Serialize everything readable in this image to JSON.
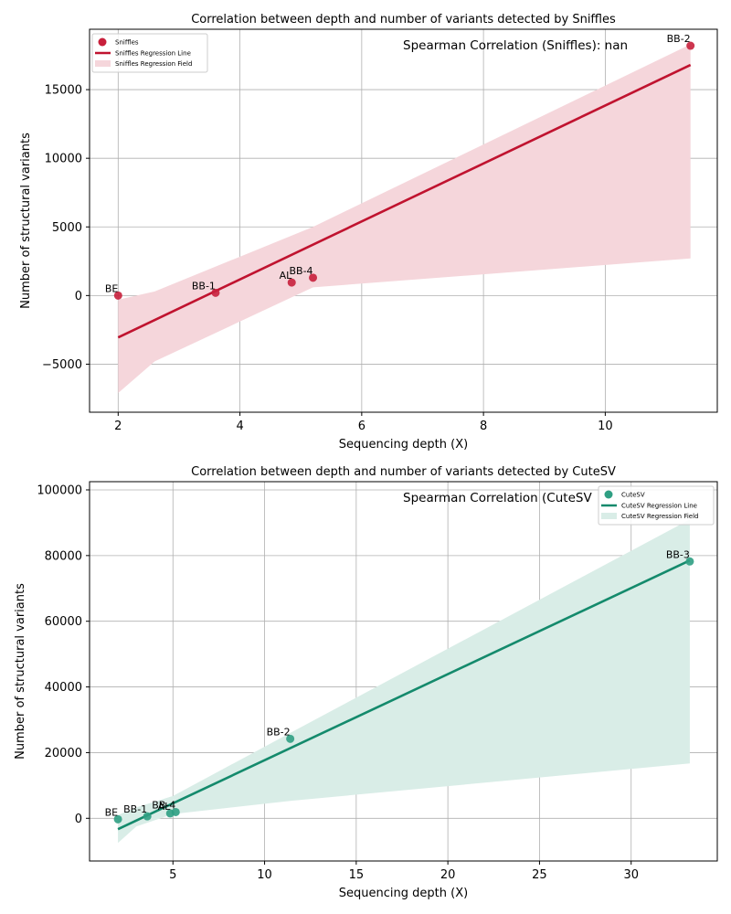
{
  "chart_data": [
    {
      "type": "scatter",
      "title": "Correlation between depth and number of variants detected by Sniffles",
      "xlabel": "Sequencing depth (X)",
      "ylabel": "Number of structural variants",
      "xlim": [
        1.53,
        11.84
      ],
      "ylim": [
        -8500,
        19400
      ],
      "xticks": [
        2,
        4,
        6,
        8,
        10
      ],
      "yticks": [
        -5000,
        0,
        5000,
        10000,
        15000
      ],
      "ytick_labels": [
        "−5000",
        "0",
        "5000",
        "10000",
        "15000"
      ],
      "grid": true,
      "legend_position": "top-left",
      "annotation": "Spearman Correlation (Sniffles): nan",
      "colors": {
        "points": "#c8203c",
        "line": "#c0132f",
        "band": "#f5d6db"
      },
      "series": [
        {
          "name": "Sniffles",
          "points": [
            {
              "label": "BE",
              "x": 2.0,
              "y": 0
            },
            {
              "label": "BB-1",
              "x": 3.6,
              "y": 200
            },
            {
              "label": "AL",
              "x": 4.85,
              "y": 950
            },
            {
              "label": "BB-4",
              "x": 5.2,
              "y": 1300
            },
            {
              "label": "BB-2",
              "x": 11.4,
              "y": 18200
            }
          ]
        }
      ],
      "regression_line": {
        "name": "Sniffles Regression Line",
        "x": [
          2.0,
          11.4
        ],
        "y": [
          -3050,
          16800
        ]
      },
      "regression_band": {
        "name": "Sniffles Regression Field",
        "x": [
          2.0,
          2.6,
          5.2,
          11.4
        ],
        "upper": [
          -300,
          300,
          5000,
          18300
        ],
        "lower": [
          -7100,
          -4800,
          600,
          2700
        ]
      }
    },
    {
      "type": "scatter",
      "title": "Correlation between depth and number of variants detected by CuteSV",
      "xlabel": "Sequencing depth (X)",
      "ylabel": "Number of structural variants",
      "xlim": [
        0.45,
        34.7
      ],
      "ylim": [
        -13000,
        102500
      ],
      "xticks": [
        5,
        10,
        15,
        20,
        25,
        30
      ],
      "yticks": [
        0,
        20000,
        40000,
        60000,
        80000,
        100000
      ],
      "ytick_labels": [
        "0",
        "20000",
        "40000",
        "60000",
        "80000",
        "100000"
      ],
      "grid": true,
      "legend_position": "top-right",
      "annotation": "Spearman Correlation (CuteSV",
      "colors": {
        "points": "#2f9f83",
        "line": "#148a6c",
        "band": "#d9ede7"
      },
      "series": [
        {
          "name": "CuteSV",
          "points": [
            {
              "label": "BE",
              "x": 2.0,
              "y": -300
            },
            {
              "label": "BB-1",
              "x": 3.6,
              "y": 600
            },
            {
              "label": "AL",
              "x": 4.85,
              "y": 1500
            },
            {
              "label": "BB-4",
              "x": 5.15,
              "y": 1900
            },
            {
              "label": "BB-2",
              "x": 11.4,
              "y": 24200
            },
            {
              "label": "BB-3",
              "x": 33.2,
              "y": 78200
            }
          ]
        }
      ],
      "regression_line": {
        "name": "CuteSV Regression Line",
        "x": [
          2.0,
          33.2
        ],
        "y": [
          -3300,
          78500
        ]
      },
      "regression_band": {
        "name": "CuteSV Regression Field",
        "x": [
          2.0,
          3.0,
          5.0,
          11.4,
          33.2
        ],
        "upper": [
          1000,
          3300,
          6800,
          26000,
          91000
        ],
        "lower": [
          -7500,
          -2500,
          1300,
          5300,
          16700
        ]
      }
    }
  ]
}
